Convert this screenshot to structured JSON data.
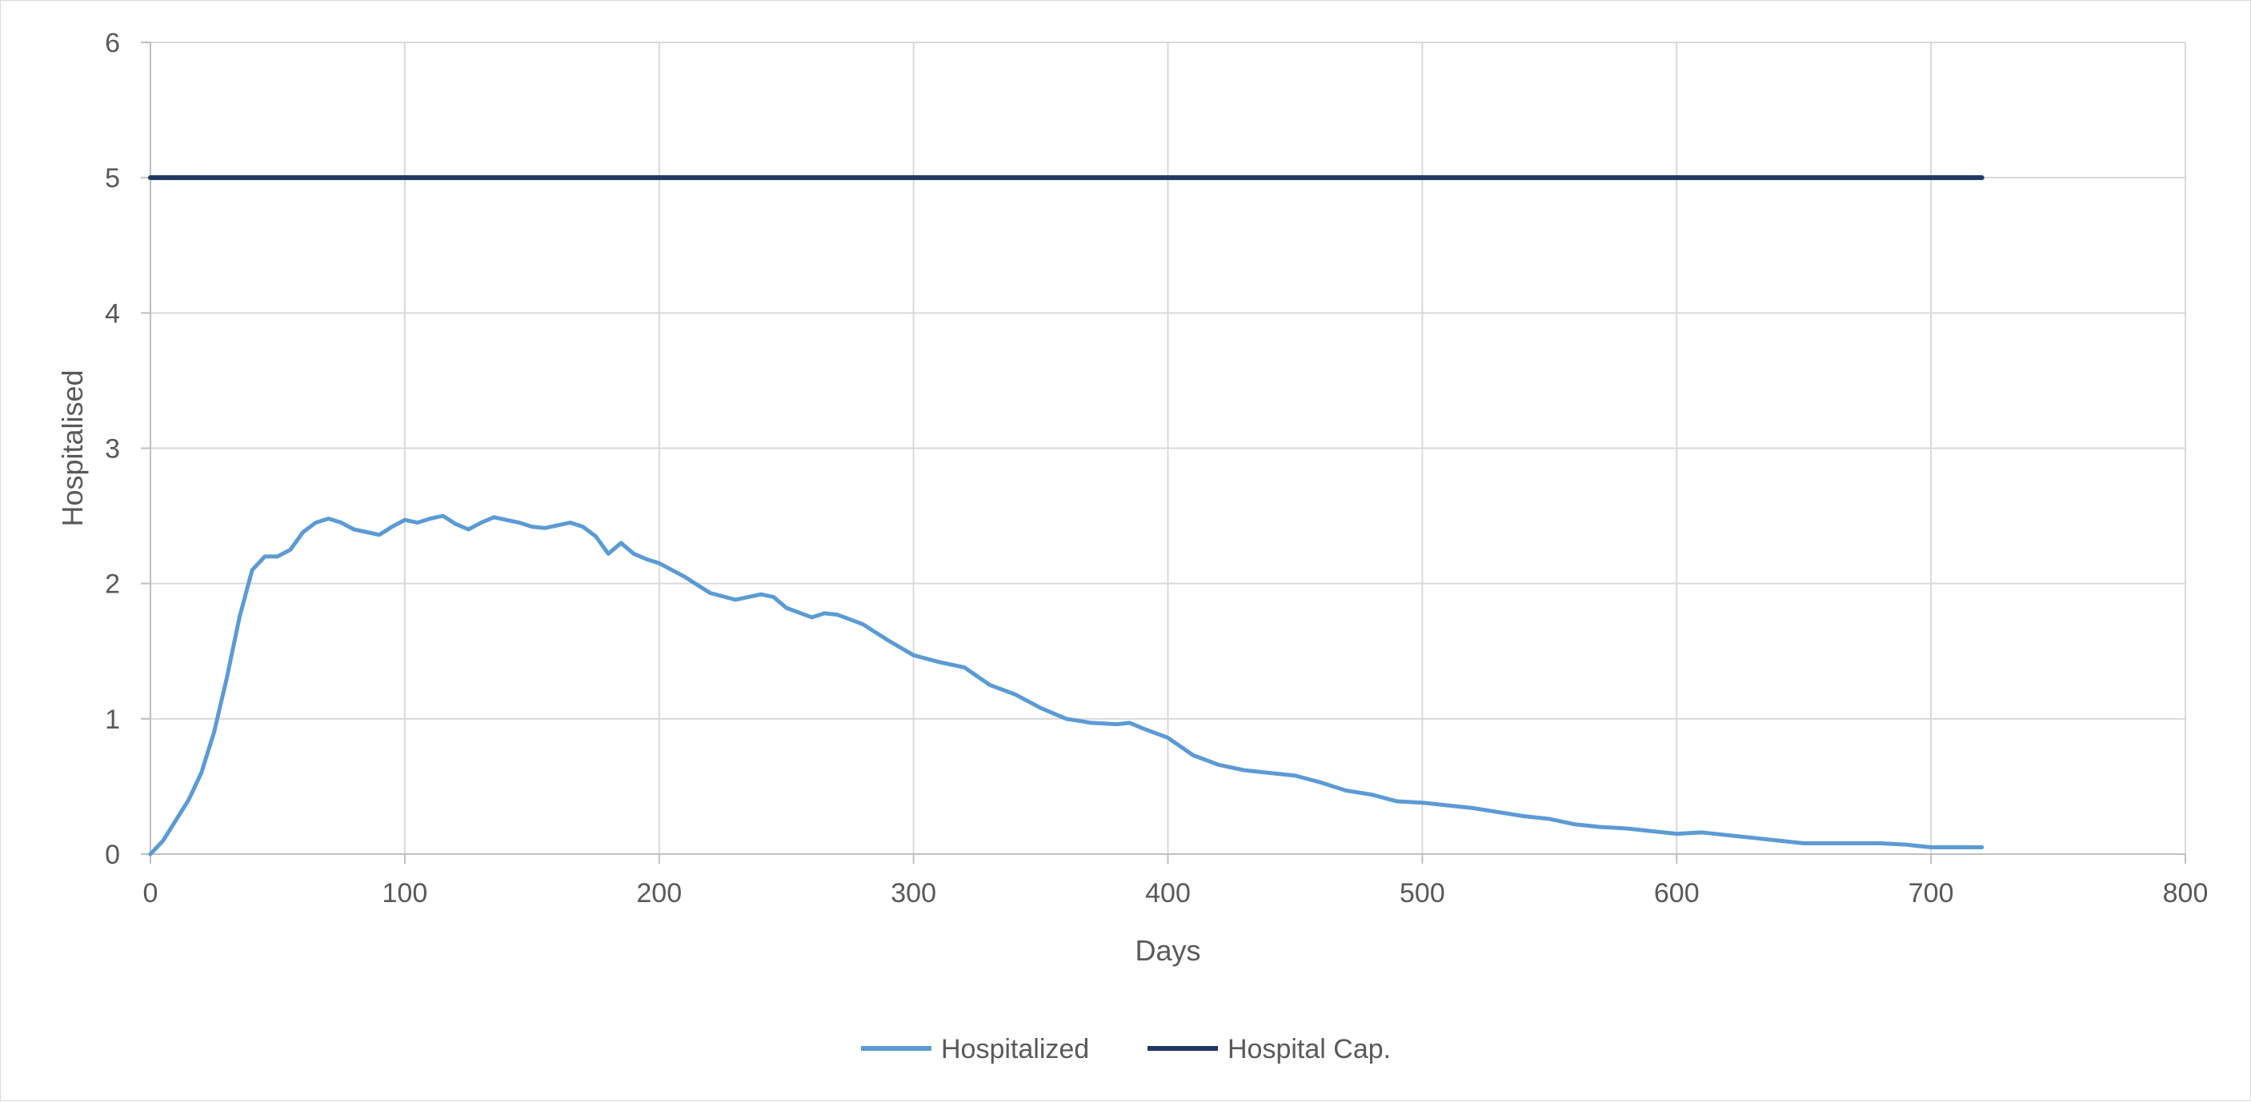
{
  "chart_data": {
    "type": "line",
    "title": "",
    "xlabel": "Days",
    "ylabel": "Hospitalised",
    "xlim": [
      0,
      800
    ],
    "ylim": [
      0,
      6
    ],
    "x_ticks": [
      0,
      100,
      200,
      300,
      400,
      500,
      600,
      700,
      800
    ],
    "y_ticks": [
      0,
      1,
      2,
      3,
      4,
      5,
      6
    ],
    "grid": true,
    "legend": "bottom",
    "series": [
      {
        "name": "Hospitalized",
        "color": "#5b9bd5",
        "x": [
          0,
          5,
          10,
          15,
          20,
          25,
          30,
          35,
          40,
          45,
          50,
          55,
          60,
          65,
          70,
          75,
          80,
          85,
          90,
          95,
          100,
          105,
          110,
          115,
          120,
          125,
          130,
          135,
          140,
          145,
          150,
          155,
          160,
          165,
          170,
          175,
          180,
          185,
          190,
          195,
          200,
          210,
          220,
          230,
          240,
          245,
          250,
          260,
          265,
          270,
          280,
          290,
          300,
          310,
          320,
          330,
          340,
          350,
          360,
          370,
          380,
          385,
          390,
          400,
          410,
          420,
          430,
          440,
          450,
          460,
          470,
          480,
          490,
          500,
          510,
          520,
          530,
          540,
          550,
          560,
          570,
          580,
          590,
          600,
          610,
          620,
          630,
          640,
          650,
          660,
          670,
          680,
          690,
          700,
          710,
          720
        ],
        "values": [
          0.0,
          0.1,
          0.25,
          0.4,
          0.6,
          0.9,
          1.3,
          1.75,
          2.1,
          2.2,
          2.2,
          2.25,
          2.38,
          2.45,
          2.48,
          2.45,
          2.4,
          2.38,
          2.36,
          2.42,
          2.47,
          2.45,
          2.48,
          2.5,
          2.44,
          2.4,
          2.45,
          2.49,
          2.47,
          2.45,
          2.42,
          2.41,
          2.43,
          2.45,
          2.42,
          2.35,
          2.22,
          2.3,
          2.22,
          2.18,
          2.15,
          2.05,
          1.93,
          1.88,
          1.92,
          1.9,
          1.82,
          1.75,
          1.78,
          1.77,
          1.7,
          1.58,
          1.47,
          1.42,
          1.38,
          1.25,
          1.18,
          1.08,
          1.0,
          0.97,
          0.96,
          0.97,
          0.93,
          0.86,
          0.73,
          0.66,
          0.62,
          0.6,
          0.58,
          0.53,
          0.47,
          0.44,
          0.39,
          0.38,
          0.36,
          0.34,
          0.31,
          0.28,
          0.26,
          0.22,
          0.2,
          0.19,
          0.17,
          0.15,
          0.16,
          0.14,
          0.12,
          0.1,
          0.08,
          0.08,
          0.08,
          0.08,
          0.07,
          0.05,
          0.05,
          0.05
        ]
      },
      {
        "name": "Hospital Cap.",
        "color": "#1f3864",
        "x": [
          0,
          720
        ],
        "values": [
          5,
          5
        ]
      }
    ]
  }
}
